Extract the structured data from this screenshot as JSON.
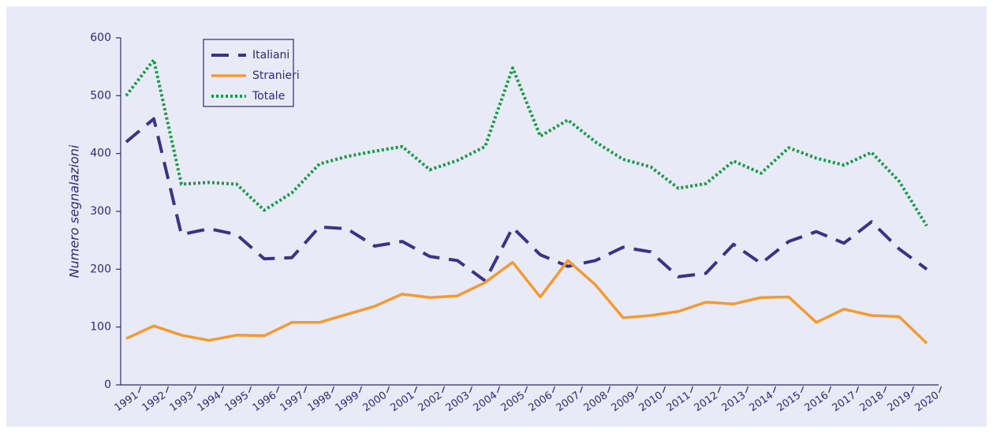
{
  "chart_data": {
    "type": "line",
    "y_label": "Numero segnalazioni",
    "categories": [
      "1991",
      "1992",
      "1993",
      "1994",
      "1995",
      "1996",
      "1997",
      "1998",
      "1999",
      "2000",
      "2001",
      "2002",
      "2003",
      "2004",
      "2005",
      "2006",
      "2007",
      "2008",
      "2009",
      "2010",
      "2011",
      "2012",
      "2013",
      "2014",
      "2015",
      "2016",
      "2017",
      "2018",
      "2019",
      "2020"
    ],
    "series": [
      {
        "name": "Italiani",
        "color": "#3b3386",
        "style": "dashed",
        "values": [
          420,
          460,
          260,
          270,
          260,
          218,
          220,
          273,
          270,
          240,
          248,
          222,
          215,
          180,
          272,
          225,
          205,
          215,
          238,
          230,
          187,
          193,
          243,
          210,
          248,
          265,
          245,
          282,
          235,
          200
        ]
      },
      {
        "name": "Stranieri",
        "color": "#f39a35",
        "style": "solid",
        "values": [
          80,
          102,
          86,
          77,
          86,
          85,
          108,
          108,
          122,
          136,
          157,
          151,
          154,
          177,
          212,
          152,
          215,
          173,
          116,
          120,
          127,
          143,
          140,
          151,
          152,
          108,
          131,
          120,
          118,
          72
        ]
      },
      {
        "name": "Totale",
        "color": "#1a9a4a",
        "style": "dotted",
        "values": [
          500,
          562,
          347,
          350,
          347,
          302,
          332,
          382,
          395,
          404,
          412,
          372,
          388,
          412,
          548,
          430,
          458,
          420,
          390,
          377,
          340,
          348,
          387,
          366,
          410,
          392,
          380,
          402,
          352,
          275
        ]
      }
    ],
    "ylim": [
      0,
      600
    ],
    "yticks": [
      0,
      100,
      200,
      300,
      400,
      500,
      600
    ],
    "legend": "upper left"
  }
}
